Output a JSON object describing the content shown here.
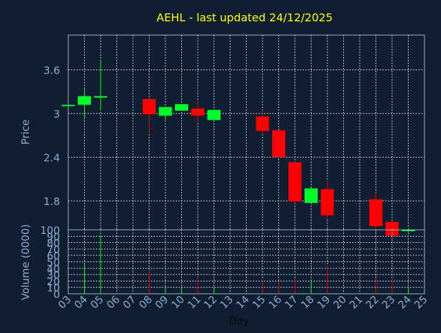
{
  "title": "AEHL - last updated 24/12/2025",
  "colors": {
    "background": "#0f1e30",
    "title": "#ffff00",
    "axis_text": "#8eaed0",
    "frame": "#9fb4c8",
    "grid": "#c8d2dc",
    "up": "#00ff28",
    "down": "#ff0000"
  },
  "chart_data": [
    {
      "type": "candlestick",
      "ylabel": "Price",
      "ylim": [
        1.4,
        4.08
      ],
      "yticks": [
        1.8,
        2.4,
        3,
        3.6
      ],
      "ytick_labels": [
        "1.8",
        "2.4",
        "3",
        "3.6"
      ],
      "grid": true,
      "candles": [
        {
          "day": 3,
          "open": 3.12,
          "high": 3.12,
          "low": 3.11,
          "close": 3.12
        },
        {
          "day": 4,
          "open": 3.12,
          "high": 3.35,
          "low": 2.93,
          "close": 3.24
        },
        {
          "day": 5,
          "open": 3.22,
          "high": 3.73,
          "low": 3.04,
          "close": 3.24
        },
        {
          "day": 8,
          "open": 3.2,
          "high": 3.2,
          "low": 2.74,
          "close": 2.99
        },
        {
          "day": 9,
          "open": 2.97,
          "high": 3.1,
          "low": 2.89,
          "close": 3.09
        },
        {
          "day": 10,
          "open": 3.04,
          "high": 3.13,
          "low": 3.04,
          "close": 3.13
        },
        {
          "day": 11,
          "open": 3.07,
          "high": 3.18,
          "low": 2.88,
          "close": 2.97
        },
        {
          "day": 12,
          "open": 2.91,
          "high": 3.05,
          "low": 2.91,
          "close": 3.05
        },
        {
          "day": 15,
          "open": 2.96,
          "high": 3.05,
          "low": 2.71,
          "close": 2.76
        },
        {
          "day": 16,
          "open": 2.77,
          "high": 2.77,
          "low": 2.4,
          "close": 2.4
        },
        {
          "day": 17,
          "open": 2.33,
          "high": 2.33,
          "low": 1.76,
          "close": 1.79
        },
        {
          "day": 18,
          "open": 1.77,
          "high": 1.98,
          "low": 1.77,
          "close": 1.97
        },
        {
          "day": 19,
          "open": 1.96,
          "high": 2.07,
          "low": 1.55,
          "close": 1.6
        },
        {
          "day": 22,
          "open": 1.82,
          "high": 1.91,
          "low": 1.33,
          "close": 1.45
        },
        {
          "day": 23,
          "open": 1.51,
          "high": 1.51,
          "low": 1.23,
          "close": 1.32
        },
        {
          "day": 24,
          "open": 1.39,
          "high": 1.43,
          "low": 1.37,
          "close": 1.4
        }
      ]
    },
    {
      "type": "bar",
      "ylabel": "Volume (0000)",
      "xlabel": "Day",
      "ylim": [
        0,
        100
      ],
      "yticks": [
        0,
        10,
        20,
        30,
        40,
        50,
        60,
        70,
        80,
        90,
        100
      ],
      "ytick_labels": [
        "0",
        "10",
        "20",
        "30",
        "40",
        "50",
        "60",
        "70",
        "80",
        "90",
        "100"
      ],
      "xticks": [
        3,
        4,
        5,
        6,
        7,
        8,
        9,
        10,
        11,
        12,
        13,
        14,
        15,
        16,
        17,
        18,
        19,
        20,
        21,
        22,
        23,
        24,
        25
      ],
      "xtick_labels": [
        "03",
        "04",
        "05",
        "06",
        "07",
        "08",
        "09",
        "10",
        "11",
        "12",
        "13",
        "14",
        "15",
        "16",
        "17",
        "18",
        "19",
        "20",
        "21",
        "22",
        "23",
        "24",
        "25"
      ],
      "grid": true,
      "volumes": [
        {
          "day": 4,
          "value": 47,
          "direction": "up"
        },
        {
          "day": 5,
          "value": 92,
          "direction": "up"
        },
        {
          "day": 8,
          "value": 36,
          "direction": "down"
        },
        {
          "day": 9,
          "value": 12,
          "direction": "up"
        },
        {
          "day": 10,
          "value": 9,
          "direction": "up"
        },
        {
          "day": 11,
          "value": 26,
          "direction": "down"
        },
        {
          "day": 12,
          "value": 8,
          "direction": "up"
        },
        {
          "day": 15,
          "value": 22,
          "direction": "down"
        },
        {
          "day": 16,
          "value": 20,
          "direction": "down"
        },
        {
          "day": 17,
          "value": 24,
          "direction": "down"
        },
        {
          "day": 18,
          "value": 23,
          "direction": "up"
        },
        {
          "day": 19,
          "value": 44,
          "direction": "down"
        },
        {
          "day": 22,
          "value": 25,
          "direction": "down"
        },
        {
          "day": 23,
          "value": 23,
          "direction": "down"
        },
        {
          "day": 24,
          "value": 9,
          "direction": "up"
        }
      ]
    }
  ]
}
